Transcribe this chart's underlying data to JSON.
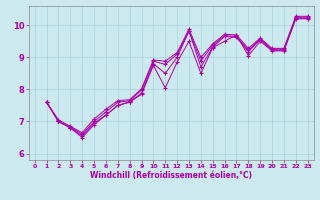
{
  "xlabel": "Windchill (Refroidissement éolien,°C)",
  "xlim": [
    -0.5,
    23.5
  ],
  "ylim": [
    5.8,
    10.6
  ],
  "yticks": [
    6,
    7,
    8,
    9,
    10
  ],
  "xticks": [
    0,
    1,
    2,
    3,
    4,
    5,
    6,
    7,
    8,
    9,
    10,
    11,
    12,
    13,
    14,
    15,
    16,
    17,
    18,
    19,
    20,
    21,
    22,
    23
  ],
  "background_color": "#cde9f0",
  "line_color": "#aa00aa",
  "series": [
    {
      "x": [
        1,
        2,
        3,
        4,
        5,
        6,
        7,
        8,
        9,
        10,
        11,
        12,
        13,
        14,
        15,
        16,
        17,
        18,
        19,
        20,
        21,
        22,
        23
      ],
      "y": [
        7.6,
        7.0,
        6.8,
        6.5,
        6.9,
        7.2,
        7.5,
        7.6,
        7.85,
        8.75,
        8.05,
        8.85,
        9.5,
        8.5,
        9.3,
        9.5,
        9.7,
        9.05,
        9.5,
        9.2,
        9.2,
        10.2,
        10.2
      ]
    },
    {
      "x": [
        1,
        2,
        3,
        4,
        5,
        6,
        7,
        8,
        9,
        10,
        11,
        12,
        13,
        14,
        15,
        16,
        17,
        18,
        19,
        20,
        21,
        22,
        23
      ],
      "y": [
        7.6,
        7.0,
        6.8,
        6.55,
        6.95,
        7.2,
        7.5,
        7.62,
        7.88,
        8.8,
        8.5,
        9.0,
        9.82,
        8.7,
        9.32,
        9.65,
        9.62,
        9.18,
        9.55,
        9.22,
        9.22,
        10.22,
        10.22
      ]
    },
    {
      "x": [
        1,
        2,
        3,
        4,
        5,
        6,
        7,
        8,
        9,
        10,
        11,
        12,
        13,
        14,
        15,
        16,
        17,
        18,
        19,
        20,
        21,
        22,
        23
      ],
      "y": [
        7.6,
        7.0,
        6.82,
        6.6,
        7.0,
        7.3,
        7.6,
        7.65,
        7.98,
        8.88,
        8.78,
        9.1,
        9.82,
        8.88,
        9.38,
        9.68,
        9.65,
        9.22,
        9.57,
        9.25,
        9.25,
        10.25,
        10.25
      ]
    },
    {
      "x": [
        1,
        2,
        3,
        4,
        5,
        6,
        7,
        8,
        9,
        10,
        11,
        12,
        13,
        14,
        15,
        16,
        17,
        18,
        19,
        20,
        21,
        22,
        23
      ],
      "y": [
        7.6,
        7.05,
        6.85,
        6.65,
        7.08,
        7.38,
        7.65,
        7.68,
        8.02,
        8.92,
        8.88,
        9.15,
        9.88,
        9.0,
        9.42,
        9.72,
        9.7,
        9.28,
        9.6,
        9.28,
        9.28,
        10.28,
        10.28
      ]
    }
  ]
}
